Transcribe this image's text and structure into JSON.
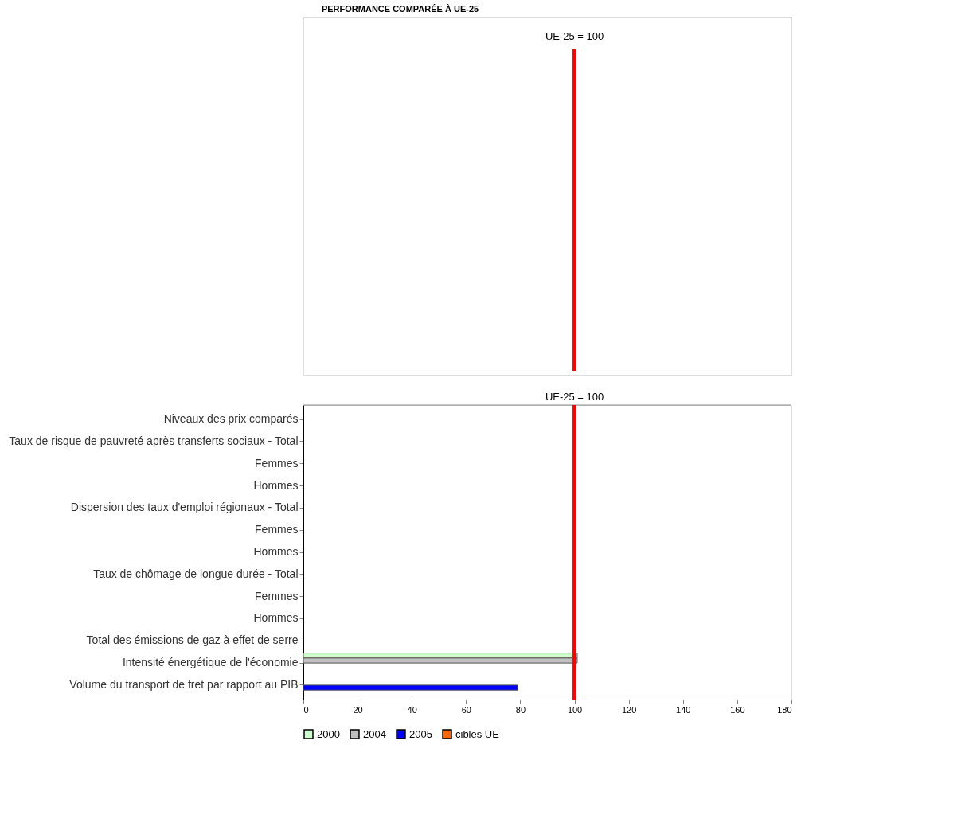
{
  "chart_data": {
    "type": "bar",
    "orientation": "horizontal",
    "title": "PERFORMANCE COMPARÉE À UE-25",
    "categories": [
      "Niveaux des prix comparés",
      "Taux de risque de pauvreté après transferts sociaux - Total",
      "Femmes",
      "Hommes",
      "Dispersion des taux d'emploi régionaux - Total",
      "Femmes",
      "Hommes",
      "Taux de chômage de longue durée - Total",
      "Femmes",
      "Hommes",
      "Total des émissions de gaz à effet de serre",
      "Intensité énergétique de l'économie",
      "Volume du transport de fret par rapport au PIB"
    ],
    "series": [
      {
        "name": "2000",
        "color": "#ccffcc",
        "values": [
          null,
          null,
          null,
          null,
          null,
          null,
          null,
          null,
          null,
          null,
          null,
          101,
          null
        ]
      },
      {
        "name": "2004",
        "color": "#c0c0c0",
        "values": [
          null,
          null,
          null,
          null,
          null,
          null,
          null,
          null,
          null,
          null,
          null,
          101,
          null
        ]
      },
      {
        "name": "2005",
        "color": "#0000ff",
        "values": [
          null,
          null,
          null,
          null,
          null,
          null,
          null,
          null,
          null,
          null,
          null,
          null,
          79
        ]
      },
      {
        "name": "cibles UE",
        "color": "#ff6600",
        "values": [
          null,
          null,
          null,
          null,
          null,
          null,
          null,
          null,
          null,
          null,
          null,
          null,
          null
        ]
      }
    ],
    "xlim": [
      0,
      180
    ],
    "xticks": [
      0,
      20,
      40,
      60,
      80,
      100,
      120,
      140,
      160,
      180
    ],
    "ref_lines": [
      {
        "axis": "x",
        "value": 100,
        "label": "UE-25 = 100",
        "color": "#ff0000"
      }
    ],
    "grid": false,
    "legend": "bottom"
  }
}
